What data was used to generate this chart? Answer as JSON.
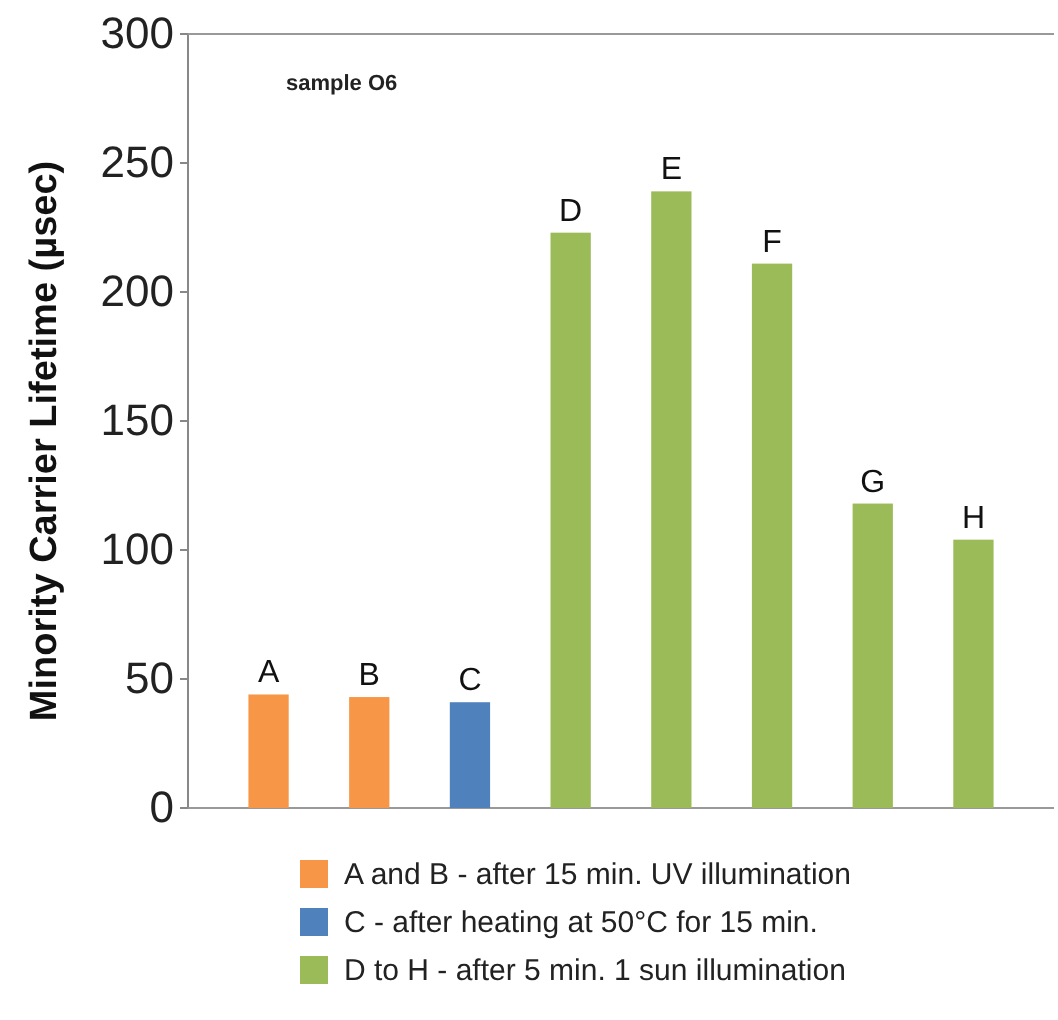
{
  "chart_data": {
    "type": "bar",
    "ylabel": "Minority Carrier Lifetime (µsec)",
    "annotations": [
      "sample O6"
    ],
    "categories": [
      "A",
      "B",
      "C",
      "D",
      "E",
      "F",
      "G",
      "H"
    ],
    "series": [
      {
        "name": "A and B - after 15 min. UV illumination",
        "color": "#f79646",
        "values": [
          44,
          43,
          null,
          null,
          null,
          null,
          null,
          null
        ]
      },
      {
        "name": "C - after heating at 50°C for 15 min.",
        "color": "#4f81bd",
        "values": [
          null,
          null,
          41,
          null,
          null,
          null,
          null,
          null
        ]
      },
      {
        "name": "D to H - after 5 min. 1 sun illumination",
        "color": "#9bbb59",
        "values": [
          null,
          null,
          null,
          223,
          239,
          211,
          118,
          104
        ]
      }
    ],
    "ylim": [
      0,
      300
    ],
    "yticks": [
      0,
      50,
      100,
      150,
      200,
      250,
      300
    ],
    "legend": "bottom"
  }
}
